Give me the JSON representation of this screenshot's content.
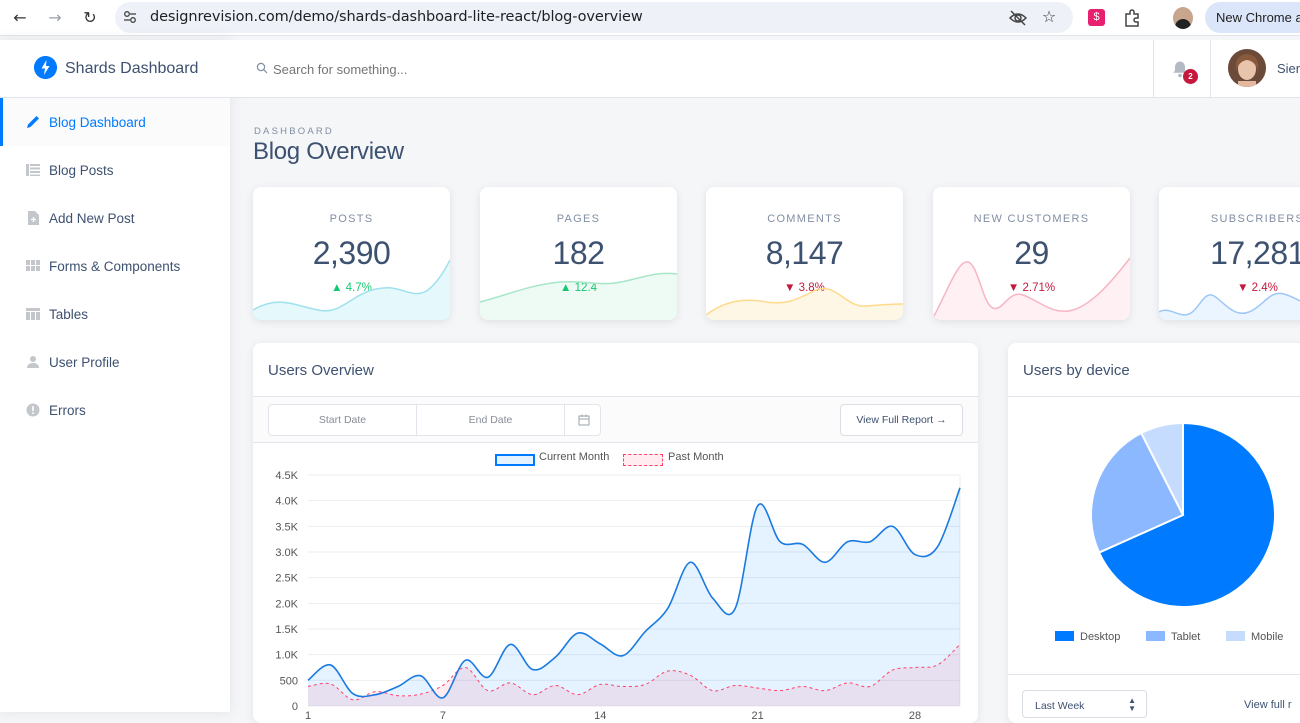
{
  "browser": {
    "url": "designrevision.com/demo/shards-dashboard-lite-react/blog-overview",
    "new_chrome": "New Chrome a"
  },
  "brand": {
    "name": "Shards Dashboard"
  },
  "sidebar": {
    "items": [
      {
        "label": "Blog Dashboard"
      },
      {
        "label": "Blog Posts"
      },
      {
        "label": "Add New Post"
      },
      {
        "label": "Forms & Components"
      },
      {
        "label": "Tables"
      },
      {
        "label": "User Profile"
      },
      {
        "label": "Errors"
      }
    ]
  },
  "topbar": {
    "search_placeholder": "Search for something...",
    "notif_count": "2",
    "user_name": "Sier"
  },
  "page": {
    "subtitle": "DASHBOARD",
    "title": "Blog Overview"
  },
  "stats": [
    {
      "label": "POSTS",
      "value": "2,390",
      "delta": "4.7%",
      "dir": "up",
      "color": "#00b8d8"
    },
    {
      "label": "PAGES",
      "value": "182",
      "delta": "12.4",
      "dir": "up",
      "color": "#17c671"
    },
    {
      "label": "COMMENTS",
      "value": "8,147",
      "delta": "3.8%",
      "dir": "down",
      "color": "#ffb400"
    },
    {
      "label": "NEW CUSTOMERS",
      "value": "29",
      "delta": "2.71%",
      "dir": "down",
      "color": "#ff4169"
    },
    {
      "label": "SUBSCRIBERS",
      "value": "17,281",
      "delta": "2.4%",
      "dir": "down",
      "color": "#007bff"
    }
  ],
  "overview": {
    "title": "Users Overview",
    "start_date": "Start Date",
    "end_date": "End Date",
    "report_button": "View Full Report →"
  },
  "devices": {
    "title": "Users by device",
    "period": "Last Week",
    "footer_link": "View full r"
  },
  "chart_data": [
    {
      "type": "area",
      "title": "Users Overview",
      "legend": [
        "Current Month",
        "Past Month"
      ],
      "x": [
        1,
        2,
        3,
        4,
        5,
        6,
        7,
        8,
        9,
        10,
        11,
        12,
        13,
        14,
        15,
        16,
        17,
        18,
        19,
        20,
        21,
        22,
        23,
        24,
        25,
        26,
        27,
        28,
        29,
        30
      ],
      "x_ticks": [
        "1",
        "7",
        "14",
        "21",
        "28"
      ],
      "y_ticks": [
        "0",
        "500",
        "1.0K",
        "1.5K",
        "2.0K",
        "2.5K",
        "3.0K",
        "3.5K",
        "4.0K",
        "4.5K"
      ],
      "ylim": [
        0,
        4500
      ],
      "series": [
        {
          "name": "Current Month",
          "values": [
            500,
            800,
            240,
            220,
            380,
            590,
            160,
            890,
            560,
            1200,
            710,
            950,
            1420,
            1210,
            980,
            1450,
            1900,
            2800,
            2100,
            1900,
            3900,
            3200,
            3150,
            2800,
            3200,
            3200,
            3500,
            2950,
            3100,
            4250
          ]
        },
        {
          "name": "Past Month",
          "values": [
            380,
            430,
            120,
            280,
            200,
            230,
            400,
            750,
            300,
            450,
            220,
            400,
            220,
            420,
            380,
            420,
            680,
            600,
            300,
            400,
            350,
            300,
            380,
            300,
            450,
            380,
            700,
            750,
            800,
            1200
          ]
        }
      ]
    },
    {
      "type": "pie",
      "title": "Users by device",
      "categories": [
        "Desktop",
        "Tablet",
        "Mobile"
      ],
      "values": [
        68.3,
        24.2,
        7.5
      ],
      "colors": [
        "#007bff",
        "#8bb8ff",
        "#c5dcff"
      ]
    }
  ]
}
